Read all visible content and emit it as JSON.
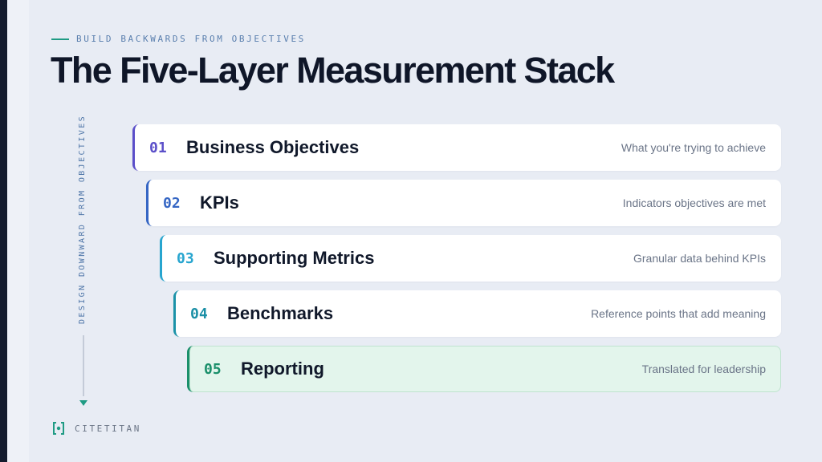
{
  "header": {
    "eyebrow": "BUILD BACKWARDS FROM OBJECTIVES",
    "title": "The Five-Layer Measurement Stack"
  },
  "side_label": "DESIGN DOWNWARD FROM OBJECTIVES",
  "layers": [
    {
      "number": "01",
      "title": "Business Objectives",
      "description": "What you're trying to achieve",
      "accent": "#5b4fc9",
      "number_color": "#5b4fc9",
      "background": "#ffffff"
    },
    {
      "number": "02",
      "title": "KPIs",
      "description": "Indicators objectives are met",
      "accent": "#3566c4",
      "number_color": "#3566c4",
      "background": "#ffffff"
    },
    {
      "number": "03",
      "title": "Supporting Metrics",
      "description": "Granular data behind KPIs",
      "accent": "#27a5cf",
      "number_color": "#27a5cf",
      "background": "#ffffff"
    },
    {
      "number": "04",
      "title": "Benchmarks",
      "description": "Reference points that add meaning",
      "accent": "#1b92a8",
      "number_color": "#1b8fa6",
      "background": "#ffffff"
    },
    {
      "number": "05",
      "title": "Reporting",
      "description": "Translated for leadership",
      "accent": "#1a8f6a",
      "number_color": "#1a8f6a",
      "background": "#e3f5ec"
    }
  ],
  "brand": {
    "name": "CITETITAN",
    "icon": "bracket-dot-logo-icon"
  },
  "colors": {
    "accent_teal": "#1f9b84",
    "title": "#0f1628",
    "background": "#e8ecf4"
  }
}
